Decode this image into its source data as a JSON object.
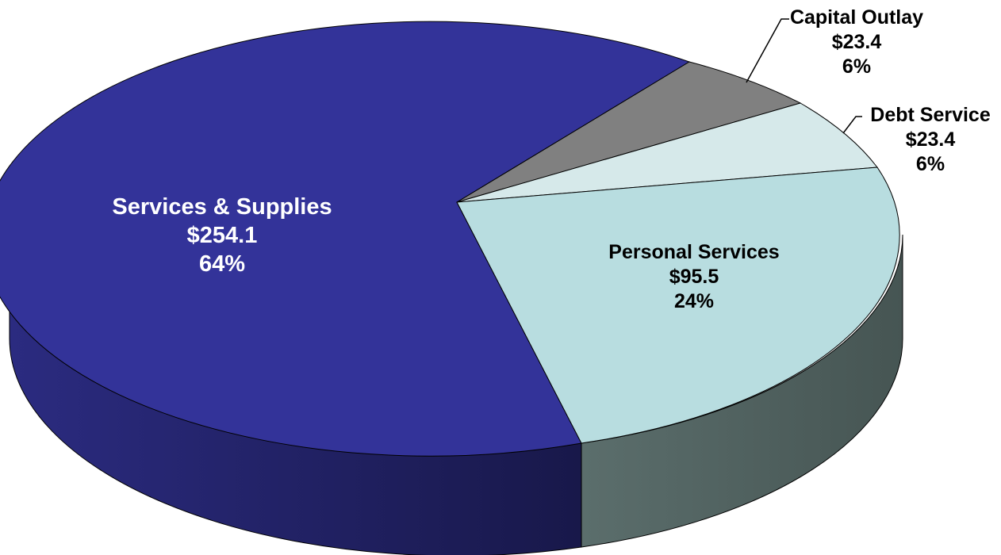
{
  "chart_data": {
    "type": "pie",
    "style": "3d",
    "slices": [
      {
        "name": "Services & Supplies",
        "value_label": "$254.1",
        "pct_label": "64%",
        "value": 254.1,
        "percent": 64,
        "color": "#333399",
        "side_color": "#1f1f5e"
      },
      {
        "name": "Capital Outlay",
        "value_label": "$23.4",
        "pct_label": "6%",
        "value": 23.4,
        "percent": 6,
        "color": "#808080",
        "side_color": "#4d4d4d"
      },
      {
        "name": "Debt Service",
        "value_label": "$23.4",
        "pct_label": "6%",
        "value": 23.4,
        "percent": 6,
        "color": "#d6e9ea",
        "side_color": "#7f9192"
      },
      {
        "name": "Personal Services",
        "value_label": "$95.5",
        "pct_label": "24%",
        "value": 95.5,
        "percent": 24,
        "color": "#b8dde0",
        "side_color": "#4a5a5a"
      }
    ]
  }
}
